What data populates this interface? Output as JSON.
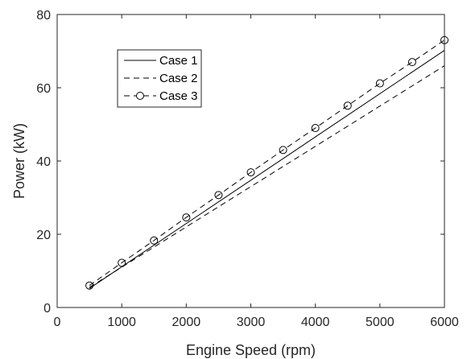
{
  "chart_data": {
    "type": "line",
    "xlabel": "Engine Speed (rpm)",
    "ylabel": "Power (kW)",
    "xlim": [
      0,
      6000
    ],
    "ylim": [
      0,
      80
    ],
    "xticks": [
      0,
      1000,
      2000,
      3000,
      4000,
      5000,
      6000
    ],
    "yticks": [
      0,
      20,
      40,
      60,
      80
    ],
    "grid": false,
    "legend_position": "top-left",
    "series": [
      {
        "name": "Case 1",
        "line_style": "solid",
        "marker": "none",
        "color": "#000000",
        "x": [
          500,
          6000
        ],
        "y": [
          5.2,
          70.2
        ]
      },
      {
        "name": "Case 2",
        "line_style": "dashed",
        "marker": "none",
        "color": "#000000",
        "x": [
          500,
          6000
        ],
        "y": [
          5.5,
          66.0
        ]
      },
      {
        "name": "Case 3",
        "line_style": "dashed",
        "marker": "circle",
        "color": "#000000",
        "x": [
          500,
          1000,
          1500,
          2000,
          2500,
          3000,
          3500,
          4000,
          4500,
          5000,
          5500,
          6000
        ],
        "y": [
          6.0,
          12.2,
          18.3,
          24.6,
          30.7,
          36.9,
          43.0,
          49.0,
          55.1,
          61.2,
          67.0,
          73.0
        ]
      }
    ]
  }
}
